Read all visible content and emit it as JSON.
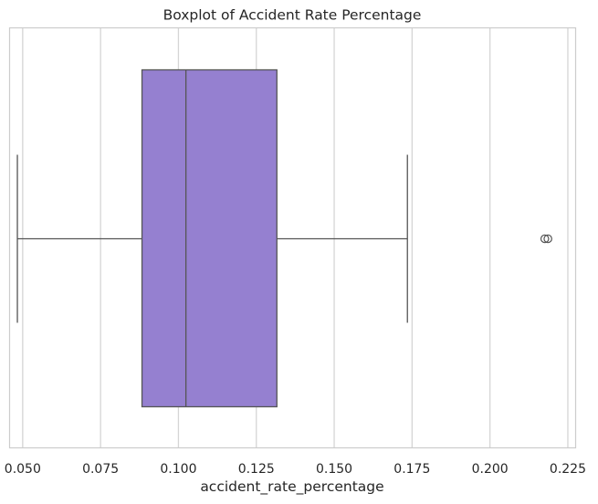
{
  "chart_data": {
    "type": "box",
    "title": "Boxplot of Accident Rate Percentage",
    "xlabel": "accident_rate_percentage",
    "ylabel": "",
    "orientation": "horizontal",
    "xlim": [
      0.0458,
      0.2275
    ],
    "xticks": [
      0.05,
      0.075,
      0.1,
      0.125,
      0.15,
      0.175,
      0.2,
      0.225
    ],
    "xtick_labels": [
      "0.050",
      "0.075",
      "0.100",
      "0.125",
      "0.150",
      "0.175",
      "0.200",
      "0.225"
    ],
    "grid": "vertical",
    "series": [
      {
        "whisker_low": 0.0483,
        "q1": 0.0883,
        "median": 0.1024,
        "q3": 0.1316,
        "whisker_high": 0.1735,
        "outliers": [
          0.2176,
          0.2186
        ]
      }
    ],
    "colors": {
      "box_fill": "#9580d0",
      "line": "#555555",
      "grid": "#d5d5d5",
      "spine": "#cccccc"
    }
  }
}
